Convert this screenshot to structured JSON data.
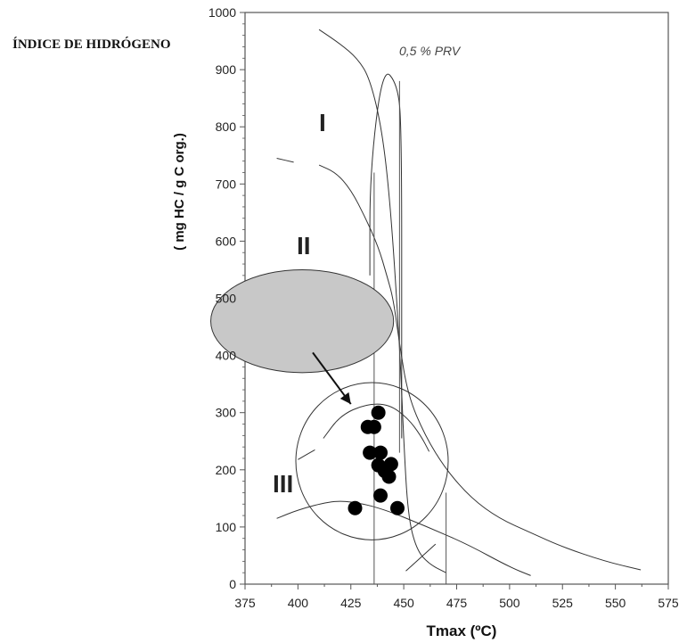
{
  "chart_data": {
    "type": "scatter",
    "title": "ÍNDICE DE HIDRÓGENO",
    "xlabel": "Tmax (ºC)",
    "ylabel": "( mg HC / g C org.)",
    "xlim": [
      375,
      575
    ],
    "ylim": [
      0,
      1000
    ],
    "x_ticks": [
      375,
      400,
      425,
      450,
      475,
      500,
      525,
      550,
      575
    ],
    "y_ticks": [
      0,
      100,
      200,
      300,
      400,
      500,
      600,
      700,
      800,
      900,
      1000
    ],
    "annotations": {
      "type_I": "I",
      "type_II": "II",
      "type_III": "III",
      "prv": "0,5 % PRV"
    },
    "points": [
      {
        "x": 427,
        "y": 133
      },
      {
        "x": 438,
        "y": 300
      },
      {
        "x": 433,
        "y": 275
      },
      {
        "x": 436,
        "y": 275
      },
      {
        "x": 434,
        "y": 230
      },
      {
        "x": 439,
        "y": 230
      },
      {
        "x": 438,
        "y": 208
      },
      {
        "x": 444,
        "y": 210
      },
      {
        "x": 441,
        "y": 198
      },
      {
        "x": 443,
        "y": 188
      },
      {
        "x": 439,
        "y": 155
      },
      {
        "x": 447,
        "y": 133
      }
    ],
    "curves": {
      "type_I": [
        [
          410,
          970
        ],
        [
          420,
          945
        ],
        [
          428,
          920
        ],
        [
          434,
          885
        ],
        [
          440,
          790
        ],
        [
          444,
          650
        ],
        [
          448,
          420
        ],
        [
          450,
          250
        ],
        [
          452,
          120
        ],
        [
          456,
          60
        ],
        [
          462,
          35
        ],
        [
          470,
          20
        ]
      ],
      "type_II": [
        [
          410,
          733
        ],
        [
          418,
          720
        ],
        [
          425,
          690
        ],
        [
          432,
          640
        ],
        [
          438,
          590
        ],
        [
          442,
          540
        ],
        [
          445,
          500
        ],
        [
          448,
          420
        ],
        [
          452,
          330
        ],
        [
          460,
          260
        ],
        [
          470,
          200
        ],
        [
          482,
          150
        ],
        [
          495,
          115
        ],
        [
          510,
          90
        ],
        [
          525,
          65
        ],
        [
          545,
          40
        ],
        [
          562,
          25
        ]
      ],
      "type_III_upper": [
        [
          412,
          255
        ],
        [
          420,
          295
        ],
        [
          432,
          315
        ],
        [
          443,
          315
        ],
        [
          452,
          290
        ],
        [
          458,
          260
        ],
        [
          462,
          232
        ]
      ],
      "type_III_upper_dash": [
        [
          390,
          745
        ],
        [
          398,
          738
        ]
      ],
      "type_III_lower": [
        [
          390,
          115
        ],
        [
          400,
          130
        ],
        [
          415,
          145
        ],
        [
          425,
          145
        ],
        [
          440,
          132
        ],
        [
          460,
          102
        ],
        [
          480,
          70
        ],
        [
          500,
          30
        ],
        [
          510,
          15
        ]
      ],
      "iso_prv": [
        [
          434,
          540
        ],
        [
          434,
          720
        ],
        [
          440,
          905
        ],
        [
          447,
          875
        ],
        [
          449,
          800
        ],
        [
          449,
          400
        ],
        [
          449,
          255
        ]
      ],
      "small_dash": [
        [
          400,
          218
        ],
        [
          408,
          235
        ]
      ],
      "bottom_small": [
        [
          451,
          23
        ],
        [
          465,
          70
        ]
      ]
    },
    "vertical_lines": [
      {
        "x": 436,
        "y1": 0,
        "y2": 720
      },
      {
        "x": 448,
        "y1": 230,
        "y2": 880
      },
      {
        "x": 470,
        "y1": 0,
        "y2": 160
      }
    ],
    "type_II_blob": {
      "cx": 402,
      "cy": 460,
      "rx": 16,
      "ry": 90,
      "fill": "#c8c8c8"
    },
    "cluster_ellipse": {
      "cx": 435,
      "cy": 215,
      "rx": 18,
      "ry": 110
    },
    "arrow": {
      "from": [
        407,
        405
      ],
      "to": [
        425,
        315
      ]
    },
    "colors": {
      "points": "#000000",
      "lines": "#333333",
      "blob": "#c8c8c8"
    }
  }
}
